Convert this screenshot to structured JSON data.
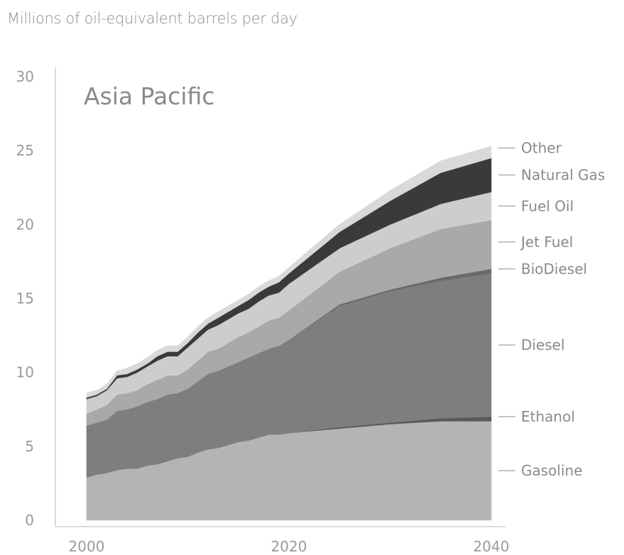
{
  "subtitle": "Millions of oil-equivalent barrels per day",
  "chart_data": {
    "type": "area",
    "stacked": true,
    "panel_label": "Asia Pacific",
    "x": [
      2000,
      2001,
      2002,
      2003,
      2004,
      2005,
      2006,
      2007,
      2008,
      2009,
      2010,
      2011,
      2012,
      2013,
      2014,
      2015,
      2016,
      2017,
      2018,
      2019,
      2020,
      2025,
      2030,
      2035,
      2040
    ],
    "xticks": [
      "2000",
      "2020",
      "2040"
    ],
    "xlim": [
      1995,
      2041
    ],
    "yticks": [
      "0",
      "5",
      "10",
      "15",
      "20",
      "25",
      "30"
    ],
    "ylim": [
      0,
      30
    ],
    "grid": false,
    "legend_position": "right, end-of-area labels",
    "series": [
      {
        "name": "Gasoline",
        "color": "#b4b4b4",
        "values": [
          2.9,
          3.1,
          3.2,
          3.4,
          3.5,
          3.5,
          3.7,
          3.8,
          4.0,
          4.2,
          4.3,
          4.6,
          4.8,
          4.9,
          5.1,
          5.3,
          5.4,
          5.6,
          5.8,
          5.8,
          5.9,
          6.2,
          6.5,
          6.7,
          6.7
        ]
      },
      {
        "name": "Ethanol",
        "color": "#5a5a5a",
        "values": [
          0.0,
          0.0,
          0.0,
          0.0,
          0.0,
          0.0,
          0.0,
          0.0,
          0.0,
          0.0,
          0.0,
          0.0,
          0.0,
          0.0,
          0.0,
          0.0,
          0.0,
          0.0,
          0.0,
          0.0,
          0.0,
          0.1,
          0.1,
          0.2,
          0.3
        ]
      },
      {
        "name": "Diesel",
        "color": "#7e7e7e",
        "values": [
          3.5,
          3.5,
          3.6,
          4.0,
          4.0,
          4.2,
          4.3,
          4.4,
          4.5,
          4.4,
          4.6,
          4.8,
          5.1,
          5.2,
          5.3,
          5.4,
          5.6,
          5.7,
          5.8,
          6.0,
          6.3,
          8.2,
          8.9,
          9.3,
          9.7
        ]
      },
      {
        "name": "BioDiesel",
        "color": "#6a6a6a",
        "values": [
          0.0,
          0.0,
          0.0,
          0.0,
          0.0,
          0.0,
          0.0,
          0.0,
          0.0,
          0.0,
          0.0,
          0.0,
          0.0,
          0.0,
          0.0,
          0.0,
          0.0,
          0.0,
          0.0,
          0.0,
          0.0,
          0.1,
          0.1,
          0.2,
          0.3
        ]
      },
      {
        "name": "Jet Fuel",
        "color": "#a9a9a9",
        "values": [
          0.8,
          0.9,
          1.0,
          1.1,
          1.1,
          1.1,
          1.2,
          1.3,
          1.3,
          1.2,
          1.3,
          1.4,
          1.5,
          1.5,
          1.6,
          1.7,
          1.7,
          1.8,
          1.9,
          1.9,
          2.0,
          2.2,
          2.8,
          3.3,
          3.3
        ]
      },
      {
        "name": "Fuel Oil",
        "color": "#cdcdcd",
        "values": [
          1.0,
          0.9,
          1.0,
          1.1,
          1.1,
          1.2,
          1.2,
          1.3,
          1.3,
          1.3,
          1.5,
          1.5,
          1.5,
          1.6,
          1.6,
          1.6,
          1.6,
          1.7,
          1.7,
          1.7,
          1.8,
          1.6,
          1.6,
          1.7,
          1.9
        ]
      },
      {
        "name": "Natural Gas",
        "color": "#3a3a3a",
        "values": [
          0.1,
          0.1,
          0.1,
          0.2,
          0.2,
          0.2,
          0.2,
          0.3,
          0.3,
          0.3,
          0.3,
          0.4,
          0.4,
          0.5,
          0.5,
          0.5,
          0.6,
          0.6,
          0.6,
          0.7,
          0.7,
          1.1,
          1.6,
          2.1,
          2.3
        ]
      },
      {
        "name": "Other",
        "color": "#d9d9d9",
        "values": [
          0.3,
          0.3,
          0.3,
          0.3,
          0.4,
          0.4,
          0.4,
          0.4,
          0.4,
          0.4,
          0.4,
          0.4,
          0.4,
          0.4,
          0.4,
          0.4,
          0.4,
          0.4,
          0.4,
          0.4,
          0.4,
          0.5,
          0.7,
          0.8,
          0.8
        ]
      }
    ]
  }
}
